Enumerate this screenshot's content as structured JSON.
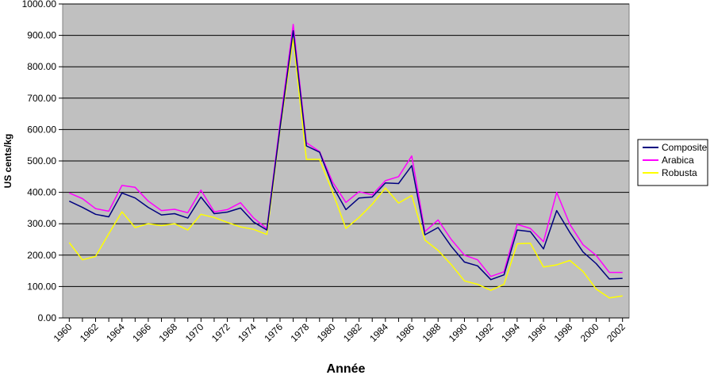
{
  "chart_data": {
    "type": "line",
    "title": "",
    "xlabel": "Année",
    "ylabel": "US cents/kg",
    "ylim": [
      0,
      1000
    ],
    "y_ticks": [
      "0.00",
      "100.00",
      "200.00",
      "300.00",
      "400.00",
      "500.00",
      "600.00",
      "700.00",
      "800.00",
      "900.00",
      "1000.00"
    ],
    "x_tick_labels": [
      "1960",
      "1962",
      "1964",
      "1966",
      "1968",
      "1970",
      "1972",
      "1974",
      "1976",
      "1978",
      "1980",
      "1982",
      "1984",
      "1986",
      "1988",
      "1990",
      "1992",
      "1994",
      "1996",
      "1998",
      "2000",
      "2002"
    ],
    "x": [
      1960,
      1961,
      1962,
      1963,
      1964,
      1965,
      1966,
      1967,
      1968,
      1969,
      1970,
      1971,
      1972,
      1973,
      1974,
      1975,
      1976,
      1977,
      1978,
      1979,
      1980,
      1981,
      1982,
      1983,
      1984,
      1985,
      1986,
      1987,
      1988,
      1989,
      1990,
      1991,
      1992,
      1993,
      1994,
      1995,
      1996,
      1997,
      1998,
      1999,
      2000,
      2001,
      2002
    ],
    "grid": true,
    "plot_background": "#c0c0c0",
    "legend_position": "right",
    "series": [
      {
        "name": "Composite",
        "color": "#000080",
        "values": [
          372,
          352,
          330,
          322,
          398,
          382,
          352,
          328,
          332,
          318,
          385,
          332,
          337,
          350,
          305,
          280,
          605,
          915,
          548,
          528,
          420,
          345,
          382,
          385,
          430,
          428,
          485,
          265,
          288,
          228,
          178,
          166,
          122,
          137,
          280,
          275,
          220,
          342,
          272,
          210,
          173,
          124,
          126
        ]
      },
      {
        "name": "Arabica",
        "color": "#ff00ff",
        "values": [
          398,
          380,
          348,
          340,
          422,
          416,
          372,
          342,
          346,
          335,
          407,
          338,
          345,
          367,
          318,
          284,
          620,
          935,
          558,
          530,
          432,
          368,
          402,
          392,
          437,
          450,
          516,
          275,
          312,
          250,
          200,
          185,
          132,
          147,
          298,
          285,
          243,
          400,
          298,
          233,
          199,
          145,
          145
        ]
      },
      {
        "name": "Robusta",
        "color": "#ffff00",
        "values": [
          240,
          185,
          196,
          268,
          338,
          288,
          300,
          294,
          300,
          280,
          330,
          320,
          304,
          290,
          282,
          266,
          600,
          890,
          505,
          505,
          400,
          285,
          320,
          362,
          414,
          366,
          390,
          248,
          215,
          170,
          118,
          107,
          88,
          107,
          236,
          238,
          162,
          169,
          183,
          148,
          92,
          64,
          70
        ]
      }
    ]
  }
}
